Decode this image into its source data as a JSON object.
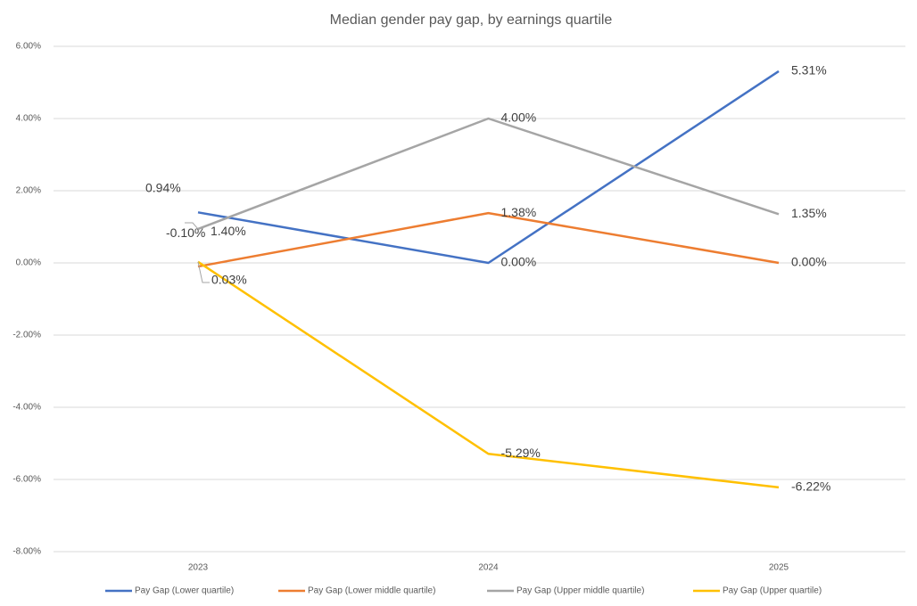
{
  "chart_data": {
    "type": "line",
    "title": "Median gender pay gap, by earnings quartile",
    "categories": [
      "2023",
      "2024",
      "2025"
    ],
    "series": [
      {
        "name": "Pay Gap (Lower quartile)",
        "color": "#4472c4",
        "values": [
          1.4,
          0.0,
          5.31
        ],
        "value_labels": [
          "1.40%",
          "0.00%",
          "5.31%"
        ]
      },
      {
        "name": "Pay Gap (Lower middle quartile)",
        "color": "#ed7d31",
        "values": [
          -0.1,
          1.38,
          0.0
        ],
        "value_labels": [
          "-0.10%",
          "1.38%",
          "0.00%"
        ]
      },
      {
        "name": "Pay Gap (Upper middle quartile)",
        "color": "#a5a5a5",
        "values": [
          0.94,
          4.0,
          1.35
        ],
        "value_labels": [
          "0.94%",
          "4.00%",
          "1.35%"
        ]
      },
      {
        "name": "Pay Gap (Upper quartile)",
        "color": "#ffc000",
        "values": [
          0.03,
          -5.29,
          -6.22
        ],
        "value_labels": [
          "0.03%",
          "-5.29%",
          "-6.22%"
        ]
      }
    ],
    "ylim": [
      -8,
      6
    ],
    "yticks": [
      {
        "value": -8,
        "label": "-8.00%"
      },
      {
        "value": -6,
        "label": "-6.00%"
      },
      {
        "value": -4,
        "label": "-4.00%"
      },
      {
        "value": -2,
        "label": "-2.00%"
      },
      {
        "value": 0,
        "label": "0.00%"
      },
      {
        "value": 2,
        "label": "2.00%"
      },
      {
        "value": 4,
        "label": "4.00%"
      },
      {
        "value": 6,
        "label": "6.00%"
      }
    ],
    "grid": true,
    "legend": "bottom"
  }
}
